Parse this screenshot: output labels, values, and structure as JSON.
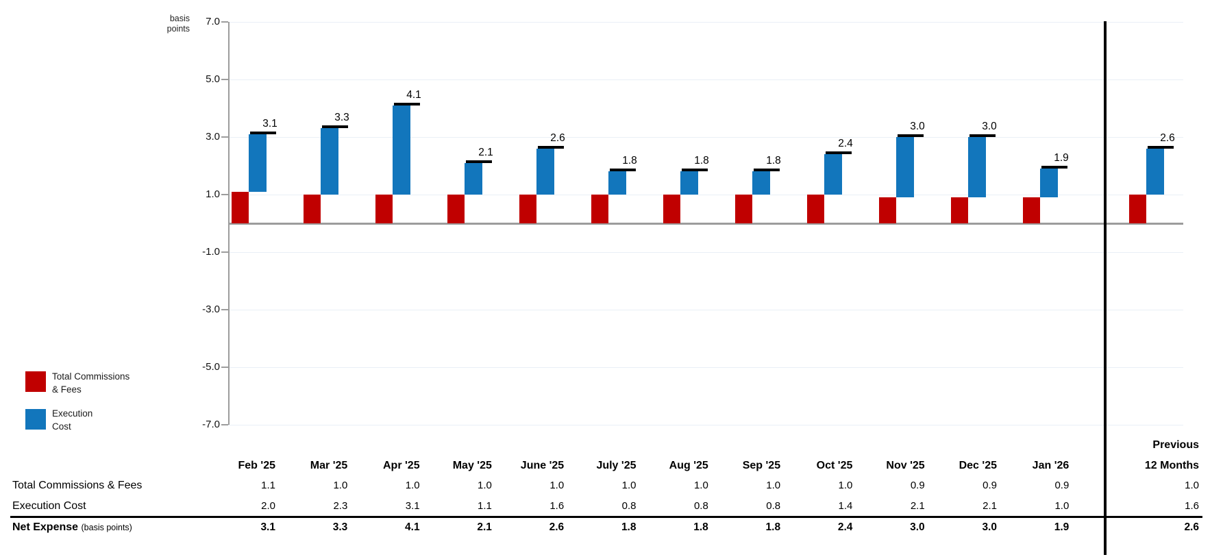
{
  "chart_data": {
    "type": "bar",
    "subtype": "stacked-waterfall-with-total-markers",
    "title": "",
    "unit_label": "basis points",
    "ylim": [
      -7.0,
      7.0
    ],
    "ytick_values": [
      7,
      5,
      3,
      1,
      -1,
      -3,
      -5,
      -7
    ],
    "grid": true,
    "legend_position": "bottom-left",
    "categories": [
      "Feb '25",
      "Mar '25",
      "Apr '25",
      "May '25",
      "June '25",
      "July '25",
      "Aug '25",
      "Sep '25",
      "Oct '25",
      "Nov '25",
      "Dec '25",
      "Jan '26"
    ],
    "extra_category": "Previous 12 Months",
    "series": [
      {
        "name": "Total Commissions & Fees",
        "color": "#C00000",
        "values": [
          1.1,
          1.0,
          1.0,
          1.0,
          1.0,
          1.0,
          1.0,
          1.0,
          1.0,
          0.9,
          0.9,
          0.9
        ],
        "previous_12_months": 1.0
      },
      {
        "name": "Execution Cost",
        "color": "#1276BC",
        "values": [
          2.0,
          2.3,
          3.1,
          1.1,
          1.6,
          0.8,
          0.8,
          0.8,
          1.4,
          2.1,
          2.1,
          1.0
        ],
        "previous_12_months": 1.6
      }
    ],
    "totals": {
      "name": "Net Expense",
      "marker_color": "#000000",
      "values": [
        3.1,
        3.3,
        4.1,
        2.1,
        2.6,
        1.8,
        1.8,
        1.8,
        2.4,
        3.0,
        3.0,
        1.9
      ],
      "previous_12_months": 2.6
    }
  },
  "legend": {
    "items": [
      {
        "lines": [
          "Total Commissions",
          "& Fees"
        ],
        "color": "#C00000"
      },
      {
        "lines": [
          "Execution",
          "Cost"
        ],
        "color": "#1276BC"
      }
    ]
  },
  "table": {
    "col_headers": [
      "Feb '25",
      "Mar '25",
      "Apr '25",
      "May '25",
      "June '25",
      "July '25",
      "Aug '25",
      "Sep '25",
      "Oct '25",
      "Nov '25",
      "Dec '25",
      "Jan '26"
    ],
    "previous_header": {
      "line1": "Previous",
      "line2": "12 Months"
    },
    "rows": [
      {
        "label": "Total Commissions & Fees",
        "label_suffix": "",
        "bold": false,
        "values": [
          1.1,
          1.0,
          1.0,
          1.0,
          1.0,
          1.0,
          1.0,
          1.0,
          1.0,
          0.9,
          0.9,
          0.9
        ],
        "previous": 1.0
      },
      {
        "label": "Execution Cost",
        "label_suffix": "",
        "bold": false,
        "values": [
          2.0,
          2.3,
          3.1,
          1.1,
          1.6,
          0.8,
          0.8,
          0.8,
          1.4,
          2.1,
          2.1,
          1.0
        ],
        "previous": 1.6
      },
      {
        "label": "Net Expense",
        "label_suffix": "(basis points)",
        "bold": true,
        "values": [
          3.1,
          3.3,
          4.1,
          2.1,
          2.6,
          1.8,
          1.8,
          1.8,
          2.4,
          3.0,
          3.0,
          1.9
        ],
        "previous": 2.6
      }
    ]
  },
  "colors": {
    "axis_gray": "#9C9C9C",
    "gridline": "#E9EFF6",
    "separator_black": "#000000"
  }
}
